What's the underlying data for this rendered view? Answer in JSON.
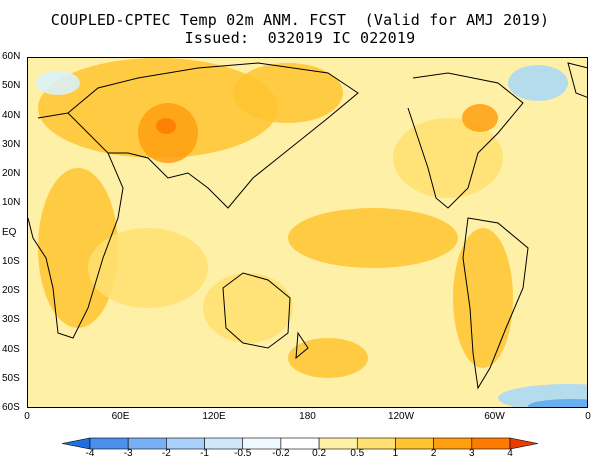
{
  "title": {
    "line1": "COUPLED-CPTEC Temp 02m ANM. FCST  (Valid for AMJ 2019)",
    "line2": "Issued:  032019 IC 022019"
  },
  "map": {
    "lat_labels": [
      "60N",
      "50N",
      "40N",
      "30N",
      "20N",
      "10N",
      "EQ",
      "10S",
      "20S",
      "30S",
      "40S",
      "50S",
      "60S"
    ],
    "lat_values": [
      60,
      50,
      40,
      30,
      20,
      10,
      0,
      -10,
      -20,
      -30,
      -40,
      -50,
      -60
    ],
    "lon_labels": [
      "0",
      "60E",
      "120E",
      "180",
      "120W",
      "60W",
      "0"
    ],
    "lon_values": [
      0,
      60,
      120,
      180,
      240,
      300,
      360
    ],
    "colors": {
      "background": "#fff0a8",
      "warm_light": "#ffe070",
      "warm_mid": "#ffc430",
      "warm_strong": "#ff9f10",
      "hot": "#ff7a00",
      "cool_light": "#d8f2ff",
      "cool_mid": "#a8d8f8",
      "cool_strong": "#5aa8f0",
      "coast": "#000000"
    }
  },
  "colorbar": {
    "labels": [
      "-4",
      "-3",
      "-2",
      "-1",
      "-0.5",
      "-0.2",
      "0.2",
      "0.5",
      "1",
      "2",
      "3",
      "4"
    ],
    "colors": [
      "#1f6fe0",
      "#4a90ec",
      "#78b0f4",
      "#a8d0f8",
      "#cfe6fb",
      "#eef8ff",
      "#ffffff",
      "#fff0a8",
      "#ffe070",
      "#ffc430",
      "#ff9f10",
      "#ff7a00",
      "#e83c00"
    ]
  }
}
